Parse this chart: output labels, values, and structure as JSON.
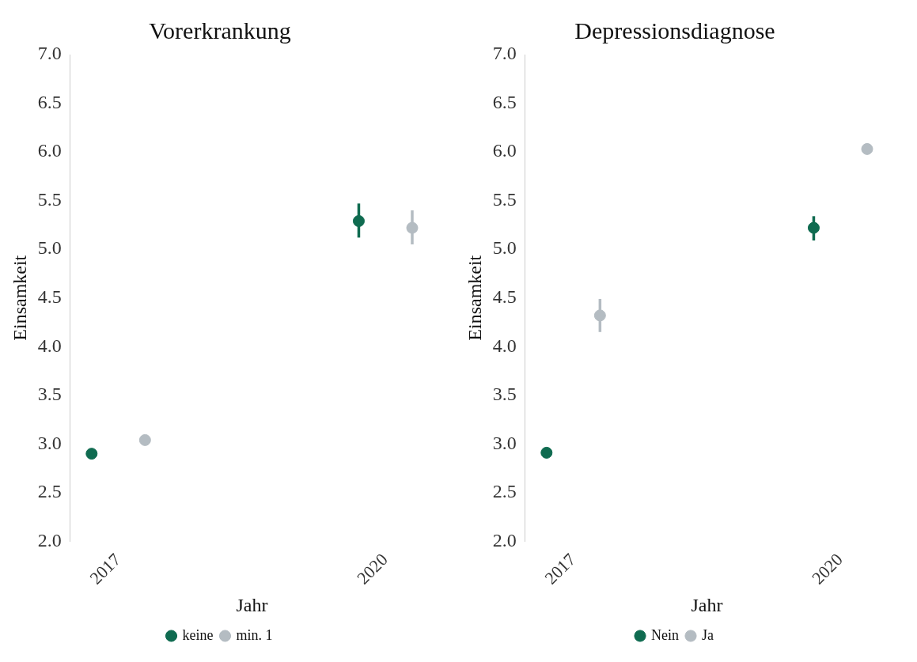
{
  "chart_data": [
    {
      "type": "scatter",
      "title": "Vorerkrankung",
      "xlabel": "Jahr",
      "ylabel": "Einsamkeit",
      "categories": [
        "2017",
        "2020"
      ],
      "ylim": [
        2,
        7
      ],
      "yticks": [
        {
          "value": 2,
          "label": "2.0"
        },
        {
          "value": 2.5,
          "label": "2.5"
        },
        {
          "value": 3,
          "label": "3.0"
        },
        {
          "value": 3.5,
          "label": "3.5"
        },
        {
          "value": 4,
          "label": "4.0"
        },
        {
          "value": 4.5,
          "label": "4.5"
        },
        {
          "value": 5,
          "label": "5.0"
        },
        {
          "value": 5.5,
          "label": "5.5"
        },
        {
          "value": 6,
          "label": "6.0"
        },
        {
          "value": 6.5,
          "label": "6.5"
        },
        {
          "value": 7,
          "label": "7.0"
        }
      ],
      "grid": false,
      "legend": "bottom",
      "marker": "circle",
      "series": [
        {
          "name": "keine",
          "color": "#0f6b50",
          "values": [
            2.9,
            5.29
          ],
          "errors": [
            null,
            [
              5.12,
              5.47
            ]
          ]
        },
        {
          "name": "min. 1",
          "color": "#b4bcc2",
          "values": [
            3.04,
            5.22
          ],
          "errors": [
            null,
            [
              5.05,
              5.4
            ]
          ]
        }
      ]
    },
    {
      "type": "scatter",
      "title": "Depressionsdiagnose",
      "xlabel": "Jahr",
      "ylabel": "Einsamkeit",
      "categories": [
        "2017",
        "2020"
      ],
      "ylim": [
        2,
        7
      ],
      "yticks": [
        {
          "value": 2,
          "label": "2.0"
        },
        {
          "value": 2.5,
          "label": "2.5"
        },
        {
          "value": 3,
          "label": "3.0"
        },
        {
          "value": 3.5,
          "label": "3.5"
        },
        {
          "value": 4,
          "label": "4.0"
        },
        {
          "value": 4.5,
          "label": "4.5"
        },
        {
          "value": 5,
          "label": "5.0"
        },
        {
          "value": 5.5,
          "label": "5.5"
        },
        {
          "value": 6,
          "label": "6.0"
        },
        {
          "value": 6.5,
          "label": "6.5"
        },
        {
          "value": 7,
          "label": "7.0"
        }
      ],
      "grid": false,
      "legend": "bottom",
      "marker": "circle",
      "series": [
        {
          "name": "Nein",
          "color": "#0f6b50",
          "values": [
            2.91,
            5.22
          ],
          "errors": [
            null,
            [
              5.09,
              5.34
            ]
          ]
        },
        {
          "name": "Ja",
          "color": "#b4bcc2",
          "values": [
            4.32,
            6.03
          ],
          "errors": [
            [
              4.15,
              4.49
            ],
            null
          ]
        }
      ]
    }
  ]
}
